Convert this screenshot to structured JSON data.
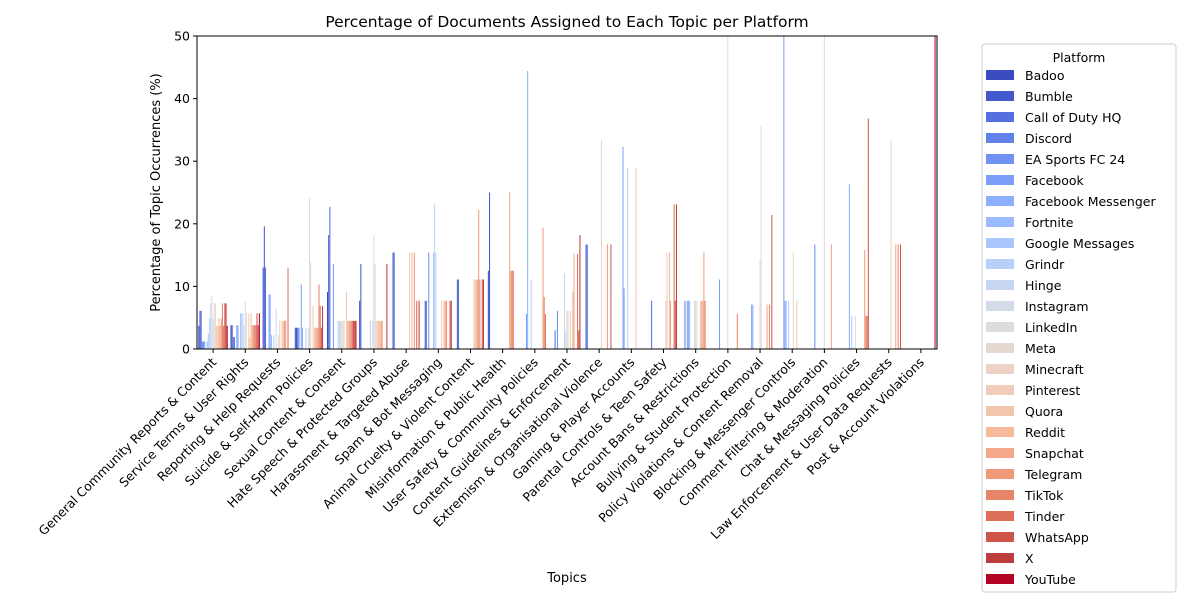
{
  "chart_data": {
    "type": "bar",
    "title": "Percentage of Documents Assigned to Each Topic per Platform",
    "xlabel": "Topics",
    "ylabel": "Percentage of Topic Occurrences (%)",
    "ylim": [
      0,
      50
    ],
    "yticks": [
      0,
      10,
      20,
      30,
      40,
      50
    ],
    "grid": false,
    "legend_title": "Platform",
    "legend_position": "outside-right",
    "categories": [
      "General Community Reports & Content",
      "Service Terms & User Rights",
      "Reporting & Help Requests",
      "Suicide & Self-Harm Policies",
      "Sexual Content & Consent",
      "Hate Speech & Protected Groups",
      "Harassment & Targeted Abuse",
      "Spam & Bot Messaging",
      "Animal Cruelty & Violent Content",
      "Misinformation & Public Health",
      "User Safety & Community Policies",
      "Content Guidelines & Enforcement",
      "Extremism & Organisational Violence",
      "Gaming & Player Accounts",
      "Parental Controls & Teen Safety",
      "Account Bans & Restrictions",
      "Bullying & Student Protection",
      "Policy Violations & Content Removal",
      "Blocking & Messenger Controls",
      "Comment Filtering & Moderation",
      "Chat & Messaging Policies",
      "Law Enforcement & User Data Requests",
      "Post & Account Violations"
    ],
    "series": [
      {
        "name": "Badoo",
        "color": "#3b4cc0",
        "values": [
          3.7,
          3.8,
          13.0,
          3.4,
          9.1,
          7.7,
          0,
          0,
          0,
          12.5,
          0,
          0,
          0,
          0,
          0,
          0,
          0,
          0,
          0,
          0,
          0,
          0,
          0
        ]
      },
      {
        "name": "Bumble",
        "color": "#4358cb",
        "values": [
          6.1,
          3.8,
          19.6,
          3.4,
          18.2,
          13.6,
          15.4,
          7.7,
          11.1,
          25.0,
          0,
          0,
          16.7,
          0,
          0,
          0,
          0,
          0,
          0,
          0,
          0,
          0,
          0
        ]
      },
      {
        "name": "Call of Duty HQ",
        "color": "#5470de",
        "values": [
          6.1,
          1.9,
          13.0,
          3.4,
          22.7,
          0,
          15.4,
          7.7,
          11.1,
          0,
          0,
          3.0,
          16.7,
          0,
          7.7,
          0,
          0,
          0,
          0,
          0,
          0,
          0,
          0
        ]
      },
      {
        "name": "Discord",
        "color": "#6282ea",
        "values": [
          1.2,
          1.9,
          0,
          3.4,
          0,
          0,
          0,
          0,
          0,
          0,
          0,
          0,
          0,
          0,
          0,
          7.7,
          0,
          0,
          0,
          0,
          0,
          0,
          0
        ]
      },
      {
        "name": "EA Sports FC 24",
        "color": "#7093f3",
        "values": [
          1.2,
          0,
          0,
          0,
          0,
          0,
          0,
          15.4,
          0,
          0,
          0,
          6.1,
          0,
          0,
          0,
          0,
          0,
          0,
          0,
          16.7,
          0,
          0,
          0
        ]
      },
      {
        "name": "Facebook",
        "color": "#7b9ff9",
        "values": [
          1.2,
          3.8,
          8.7,
          10.3,
          13.6,
          0,
          0,
          0,
          0,
          0,
          5.6,
          0,
          0,
          32.3,
          0,
          7.7,
          11.1,
          7.1,
          50.0,
          0,
          0,
          0,
          0
        ]
      },
      {
        "name": "Facebook Messenger",
        "color": "#8caffe",
        "values": [
          0,
          3.8,
          8.7,
          3.4,
          0,
          0,
          0,
          0,
          0,
          0,
          44.4,
          0,
          0,
          9.7,
          0,
          7.7,
          0,
          7.1,
          7.7,
          0,
          26.3,
          0,
          0
        ]
      },
      {
        "name": "Fortnite",
        "color": "#9abbff",
        "values": [
          1.2,
          0,
          2.2,
          0,
          0,
          0,
          0,
          0,
          0,
          0,
          0,
          0,
          0,
          0,
          0,
          7.7,
          0,
          0,
          7.7,
          0,
          0,
          0,
          0
        ]
      },
      {
        "name": "Google Messages",
        "color": "#aac7fd",
        "values": [
          2.4,
          5.7,
          0,
          0,
          0,
          0,
          0,
          15.4,
          0,
          0,
          0,
          0,
          0,
          0,
          0,
          0,
          0,
          0,
          0,
          0,
          5.3,
          0,
          0
        ]
      },
      {
        "name": "Grindr",
        "color": "#b9d0f9",
        "values": [
          4.9,
          5.7,
          2.2,
          3.4,
          4.5,
          4.5,
          0,
          23.1,
          0,
          0,
          11.1,
          0,
          0,
          29.0,
          0,
          0,
          0,
          0,
          7.7,
          0,
          0,
          0,
          0
        ]
      },
      {
        "name": "Hinge",
        "color": "#c6d6f1",
        "values": [
          7.3,
          5.7,
          0,
          0,
          4.5,
          0,
          0,
          15.4,
          0,
          0,
          0,
          12.1,
          0,
          0,
          0,
          0,
          0,
          0,
          0,
          0,
          0,
          0,
          0
        ]
      },
      {
        "name": "Instagram",
        "color": "#d2dbe8",
        "values": [
          8.5,
          3.8,
          6.5,
          3.4,
          4.5,
          4.5,
          0,
          0,
          0,
          0,
          0,
          3.0,
          0,
          0,
          0,
          7.7,
          0,
          0,
          0,
          0,
          5.3,
          0,
          0
        ]
      },
      {
        "name": "LinkedIn",
        "color": "#dddcdc",
        "values": [
          4.9,
          7.5,
          0,
          24.1,
          4.5,
          18.2,
          0,
          0,
          0,
          0,
          0,
          6.1,
          0,
          0,
          0,
          7.7,
          50.0,
          14.3,
          0,
          50.0,
          0,
          0,
          0
        ]
      },
      {
        "name": "Meta",
        "color": "#e5d8d1",
        "values": [
          7.3,
          5.7,
          2.2,
          13.8,
          4.5,
          13.6,
          0,
          0,
          0,
          0,
          0,
          6.1,
          0,
          0,
          0,
          7.7,
          0,
          35.7,
          15.4,
          0,
          0,
          0,
          0
        ]
      },
      {
        "name": "Minecraft",
        "color": "#ecd3c5",
        "values": [
          7.3,
          0,
          4.5,
          0,
          4.5,
          4.5,
          0,
          0,
          0,
          0,
          0,
          0,
          33.3,
          0,
          7.7,
          0,
          0,
          0,
          0,
          0,
          0,
          33.3,
          0
        ]
      },
      {
        "name": "Pinterest",
        "color": "#f1cdba",
        "values": [
          3.7,
          5.7,
          0,
          6.9,
          0,
          4.5,
          15.4,
          7.7,
          11.1,
          0,
          0,
          6.1,
          0,
          0,
          15.4,
          0,
          0,
          0,
          0,
          0,
          0,
          0,
          0
        ]
      },
      {
        "name": "Quora",
        "color": "#f4c5ad",
        "values": [
          3.7,
          1.9,
          4.5,
          3.4,
          9.1,
          4.5,
          0,
          0,
          11.1,
          0,
          0,
          0,
          0,
          29.0,
          0,
          7.7,
          0,
          0,
          7.7,
          0,
          0,
          0,
          0
        ]
      },
      {
        "name": "Reddit",
        "color": "#f5b99b",
        "values": [
          4.9,
          5.7,
          4.5,
          3.4,
          4.5,
          4.5,
          15.4,
          7.7,
          11.1,
          0,
          0,
          9.1,
          0,
          0,
          15.4,
          7.7,
          0,
          0,
          0,
          0,
          0,
          0,
          0
        ]
      },
      {
        "name": "Snapchat",
        "color": "#f4a789",
        "values": [
          3.7,
          3.8,
          4.5,
          3.4,
          4.5,
          4.5,
          0,
          7.7,
          11.1,
          25.0,
          0,
          15.2,
          0,
          0,
          7.7,
          7.7,
          0,
          7.1,
          0,
          16.7,
          0,
          16.7,
          0
        ]
      },
      {
        "name": "Telegram",
        "color": "#f09a7a",
        "values": [
          4.9,
          3.8,
          4.5,
          3.4,
          4.5,
          4.5,
          15.4,
          7.7,
          22.2,
          12.5,
          19.4,
          0,
          16.7,
          0,
          0,
          15.4,
          0,
          0,
          0,
          0,
          15.8,
          0,
          0
        ]
      },
      {
        "name": "TikTok",
        "color": "#e7856a",
        "values": [
          7.3,
          3.8,
          0,
          10.3,
          4.5,
          0,
          0,
          0,
          11.1,
          12.5,
          8.3,
          0,
          0,
          0,
          0,
          7.7,
          5.6,
          7.1,
          0,
          0,
          5.3,
          16.7,
          0
        ]
      },
      {
        "name": "Tinder",
        "color": "#dd6f59",
        "values": [
          3.7,
          3.8,
          13.0,
          6.9,
          4.5,
          0,
          7.7,
          0,
          0,
          12.5,
          5.6,
          15.2,
          0,
          0,
          23.1,
          0,
          0,
          0,
          0,
          0,
          5.3,
          0,
          0
        ]
      },
      {
        "name": "WhatsApp",
        "color": "#cf5549",
        "values": [
          7.3,
          5.7,
          0,
          3.4,
          4.5,
          0,
          0,
          7.7,
          11.1,
          0,
          0,
          3.0,
          16.7,
          0,
          7.7,
          0,
          0,
          21.4,
          0,
          0,
          36.8,
          16.7,
          0
        ]
      },
      {
        "name": "X",
        "color": "#bf3c3c",
        "values": [
          7.3,
          3.8,
          0,
          6.9,
          4.5,
          13.6,
          7.7,
          7.7,
          11.1,
          0,
          0,
          18.2,
          0,
          0,
          23.1,
          0,
          0,
          0,
          0,
          0,
          0,
          0,
          0
        ]
      },
      {
        "name": "YouTube",
        "color": "#b40426",
        "values": [
          3.7,
          5.7,
          0,
          0,
          4.5,
          0,
          0,
          0,
          0,
          0,
          0,
          0,
          0,
          0,
          0,
          0,
          0,
          0,
          0,
          0,
          0,
          0,
          50.0
        ]
      }
    ]
  }
}
